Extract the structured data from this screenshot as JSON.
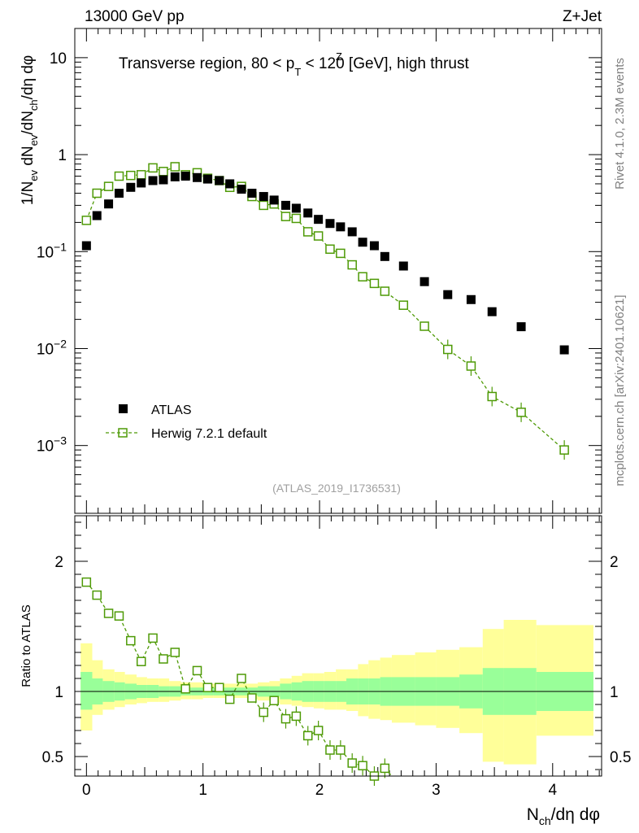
{
  "header": {
    "left_label": "13000 GeV pp",
    "right_label": "Z+Jet",
    "rivet_label": "Rivet 4.1.0,  2.3M events",
    "mcplots_label": "mcplots.cern.ch [arXiv:2401.10621]",
    "analysis_label": "(ATLAS_2019_I1736531)"
  },
  "colors": {
    "atlas": "#000000",
    "herwig": "#4e9a06",
    "band_inner": "#99ff99",
    "band_outer": "#ffff99"
  },
  "chart_data": [
    {
      "type": "scatter",
      "title": "Transverse region, 80 < p_T^Z < 120 [GeV], high thrust",
      "title_parts": {
        "a": "Transverse region, 80 < p",
        "sup": "Z",
        "sub": "T",
        "b": " < 120 [GeV], high thrust"
      },
      "ylabel": "1/N_ev dN_ev/dN_ch/dη dφ",
      "ylabel_parts": {
        "p1": "1/N",
        "s1": "ev",
        "p2": " dN",
        "s2": "ev",
        "p3": "/dN",
        "s3": "ch",
        "p4": "/dη dφ"
      },
      "yscale": "log",
      "ylim": [
        0.0002,
        20
      ],
      "xlim": [
        -0.1,
        4.42
      ],
      "y_ticks": [
        {
          "value": 0.001,
          "base": "10",
          "exp": "−3"
        },
        {
          "value": 0.01,
          "base": "10",
          "exp": "−2"
        },
        {
          "value": 0.1,
          "base": "10",
          "exp": "−1"
        },
        {
          "value": 1,
          "base": "1",
          "exp": ""
        },
        {
          "value": 10,
          "base": "10",
          "exp": ""
        }
      ],
      "legend": [
        {
          "name": "ATLAS",
          "marker": "filled-square"
        },
        {
          "name": "Herwig 7.2.1 default",
          "marker": "open-square-dashed"
        }
      ],
      "series": [
        {
          "name": "ATLAS",
          "x": [
            0.0,
            0.09,
            0.19,
            0.28,
            0.38,
            0.47,
            0.57,
            0.66,
            0.76,
            0.85,
            0.95,
            1.04,
            1.14,
            1.23,
            1.33,
            1.42,
            1.52,
            1.61,
            1.71,
            1.8,
            1.9,
            1.99,
            2.09,
            2.18,
            2.28,
            2.37,
            2.47,
            2.56,
            2.72,
            2.9,
            3.1,
            3.3,
            3.48,
            3.73,
            4.1
          ],
          "y": [
            0.115,
            0.235,
            0.31,
            0.4,
            0.46,
            0.51,
            0.54,
            0.55,
            0.59,
            0.6,
            0.58,
            0.56,
            0.54,
            0.5,
            0.44,
            0.4,
            0.37,
            0.34,
            0.3,
            0.28,
            0.25,
            0.215,
            0.195,
            0.18,
            0.16,
            0.125,
            0.115,
            0.089,
            0.071,
            0.049,
            0.036,
            0.032,
            0.024,
            0.0168,
            0.0097
          ]
        },
        {
          "name": "Herwig 7.2.1 default",
          "x": [
            0.0,
            0.09,
            0.19,
            0.28,
            0.38,
            0.47,
            0.57,
            0.66,
            0.76,
            0.85,
            0.95,
            1.04,
            1.14,
            1.23,
            1.33,
            1.42,
            1.52,
            1.61,
            1.71,
            1.8,
            1.9,
            1.99,
            2.09,
            2.18,
            2.28,
            2.37,
            2.47,
            2.56,
            2.72,
            2.9,
            3.1,
            3.3,
            3.48,
            3.73,
            4.1
          ],
          "y": [
            0.21,
            0.4,
            0.47,
            0.6,
            0.61,
            0.62,
            0.73,
            0.67,
            0.75,
            0.62,
            0.65,
            0.57,
            0.54,
            0.46,
            0.47,
            0.37,
            0.3,
            0.31,
            0.23,
            0.22,
            0.16,
            0.145,
            0.106,
            0.096,
            0.073,
            0.055,
            0.047,
            0.039,
            0.028,
            0.017,
            0.0098,
            0.0066,
            0.0032,
            0.0022,
            0.0009
          ]
        }
      ]
    },
    {
      "type": "scatter",
      "title": "",
      "ylabel": "Ratio to ATLAS",
      "xlabel": "N_ch/dη dφ",
      "xlabel_parts": {
        "p1": "N",
        "s1": "ch",
        "p2": "/dη dφ"
      },
      "xlim": [
        -0.1,
        4.42
      ],
      "ylim": [
        0.35,
        2.35
      ],
      "x_ticks": [
        0,
        1,
        2,
        3,
        4
      ],
      "y_ticks": [
        0.5,
        1,
        2
      ],
      "series": [
        {
          "name": "Herwig 7.2.1 default",
          "x": [
            0.0,
            0.09,
            0.19,
            0.28,
            0.38,
            0.47,
            0.57,
            0.66,
            0.76,
            0.85,
            0.95,
            1.04,
            1.14,
            1.23,
            1.33,
            1.42,
            1.52,
            1.61,
            1.71,
            1.8,
            1.9,
            1.99,
            2.09,
            2.18,
            2.28,
            2.37,
            2.47,
            2.56
          ],
          "y": [
            1.84,
            1.74,
            1.6,
            1.58,
            1.39,
            1.23,
            1.41,
            1.25,
            1.3,
            1.02,
            1.16,
            1.03,
            1.03,
            0.94,
            1.1,
            0.95,
            0.84,
            0.93,
            0.79,
            0.81,
            0.66,
            0.7,
            0.55,
            0.55,
            0.45,
            0.43,
            0.35,
            0.41
          ]
        }
      ],
      "bands": {
        "edges": [
          -0.05,
          0.05,
          0.14,
          0.24,
          0.33,
          0.43,
          0.52,
          0.62,
          0.71,
          0.81,
          0.9,
          1.0,
          1.09,
          1.19,
          1.28,
          1.38,
          1.47,
          1.57,
          1.66,
          1.76,
          1.85,
          1.95,
          2.04,
          2.14,
          2.23,
          2.33,
          2.42,
          2.52,
          2.62,
          2.82,
          3.0,
          3.2,
          3.4,
          3.58,
          3.86,
          4.35
        ],
        "inner_high": [
          1.15,
          1.1,
          1.08,
          1.07,
          1.06,
          1.05,
          1.05,
          1.04,
          1.04,
          1.03,
          1.03,
          1.03,
          1.03,
          1.03,
          1.03,
          1.03,
          1.04,
          1.04,
          1.06,
          1.07,
          1.08,
          1.08,
          1.08,
          1.08,
          1.1,
          1.1,
          1.1,
          1.11,
          1.11,
          1.11,
          1.11,
          1.13,
          1.18,
          1.18,
          1.15
        ],
        "inner_low": [
          0.86,
          0.9,
          0.92,
          0.93,
          0.94,
          0.95,
          0.95,
          0.96,
          0.96,
          0.97,
          0.97,
          0.97,
          0.97,
          0.97,
          0.97,
          0.97,
          0.96,
          0.96,
          0.94,
          0.93,
          0.92,
          0.92,
          0.92,
          0.92,
          0.9,
          0.9,
          0.9,
          0.89,
          0.89,
          0.89,
          0.89,
          0.87,
          0.82,
          0.82,
          0.85
        ],
        "outer_high": [
          1.37,
          1.24,
          1.17,
          1.15,
          1.13,
          1.11,
          1.1,
          1.1,
          1.08,
          1.07,
          1.07,
          1.06,
          1.06,
          1.06,
          1.06,
          1.06,
          1.07,
          1.08,
          1.1,
          1.12,
          1.14,
          1.14,
          1.15,
          1.17,
          1.17,
          1.21,
          1.24,
          1.26,
          1.28,
          1.3,
          1.32,
          1.34,
          1.48,
          1.55,
          1.51
        ],
        "outer_low": [
          0.7,
          0.82,
          0.86,
          0.88,
          0.9,
          0.91,
          0.92,
          0.92,
          0.93,
          0.94,
          0.94,
          0.95,
          0.95,
          0.95,
          0.95,
          0.94,
          0.93,
          0.91,
          0.9,
          0.89,
          0.88,
          0.87,
          0.86,
          0.86,
          0.85,
          0.81,
          0.79,
          0.78,
          0.76,
          0.74,
          0.72,
          0.68,
          0.46,
          0.44,
          0.66
        ]
      }
    }
  ]
}
